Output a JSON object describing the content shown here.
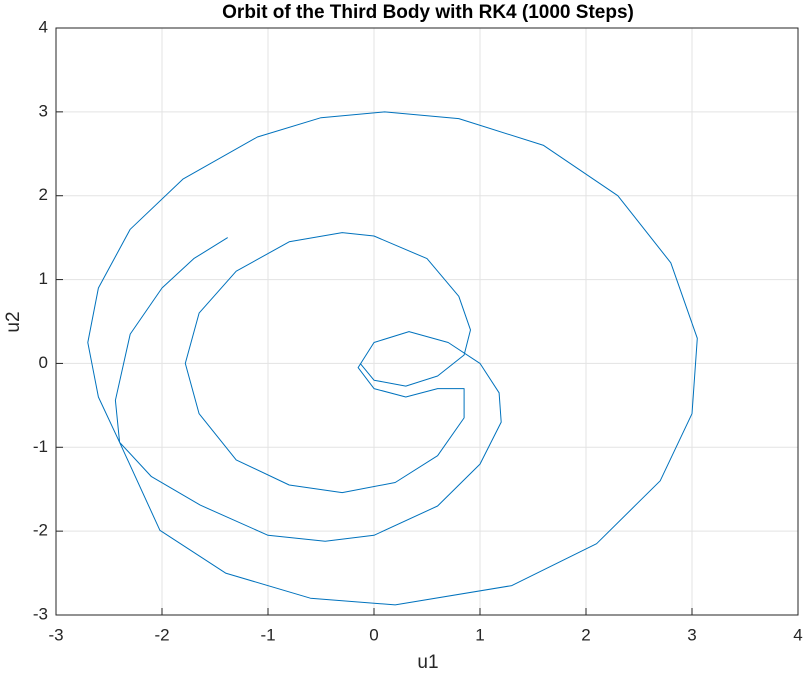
{
  "chart_data": {
    "type": "line",
    "title": "Orbit of the Third Body with RK4 (1000 Steps)",
    "xlabel": "u1",
    "ylabel": "u2",
    "xlim": [
      -3,
      4
    ],
    "ylim": [
      -3,
      4
    ],
    "xticks": [
      -3,
      -2,
      -1,
      0,
      1,
      2,
      3,
      4
    ],
    "yticks": [
      -3,
      -2,
      -1,
      0,
      1,
      2,
      3,
      4
    ],
    "grid": true,
    "series": [
      {
        "color": "#0072bd",
        "x": [
          -0.13,
          0.0,
          0.3,
          0.6,
          0.85,
          0.91,
          0.8,
          0.5,
          0.0,
          -0.3,
          -0.8,
          -1.3,
          -1.65,
          -1.78,
          -1.65,
          -1.3,
          -0.8,
          -0.3,
          0.2,
          0.6,
          0.85,
          0.85,
          0.6,
          0.3,
          0.0,
          -0.15,
          0.0,
          0.33,
          0.7,
          1.0,
          1.18,
          1.2,
          1.0,
          0.6,
          0.0,
          -0.46,
          -1.0,
          -1.64,
          -2.1,
          -2.4,
          -2.6,
          -2.7,
          -2.6,
          -2.3,
          -1.8,
          -1.1,
          -0.5,
          0.1,
          0.8,
          1.6,
          2.3,
          2.8,
          3.05,
          3.0,
          2.7,
          2.1,
          1.3,
          0.2,
          -0.6,
          -1.4,
          -2.02,
          -2.4,
          -2.44,
          -2.3,
          -2.0,
          -1.7,
          -1.38
        ],
        "values": [
          0.0,
          -0.2,
          -0.27,
          -0.15,
          0.1,
          0.4,
          0.8,
          1.25,
          1.52,
          1.56,
          1.45,
          1.1,
          0.6,
          0.0,
          -0.6,
          -1.15,
          -1.45,
          -1.54,
          -1.42,
          -1.1,
          -0.65,
          -0.3,
          -0.3,
          -0.4,
          -0.3,
          -0.05,
          0.25,
          0.38,
          0.25,
          0.0,
          -0.35,
          -0.7,
          -1.2,
          -1.7,
          -2.05,
          -2.12,
          -2.05,
          -1.69,
          -1.35,
          -0.94,
          -0.4,
          0.25,
          0.9,
          1.6,
          2.2,
          2.7,
          2.93,
          3.0,
          2.92,
          2.6,
          2.0,
          1.2,
          0.3,
          -0.6,
          -1.4,
          -2.15,
          -2.65,
          -2.88,
          -2.8,
          -2.5,
          -1.99,
          -0.94,
          -0.44,
          0.35,
          0.9,
          1.25,
          1.5
        ]
      }
    ]
  }
}
